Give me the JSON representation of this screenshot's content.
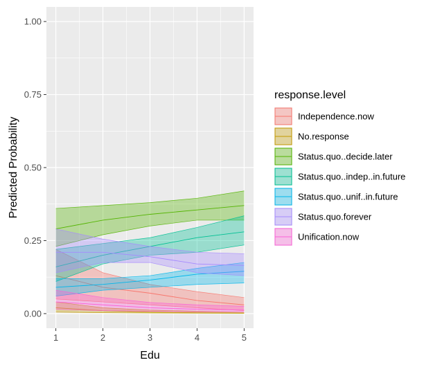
{
  "chart_data": {
    "type": "area",
    "xlabel": "Edu",
    "ylabel": "Predicted Probability",
    "xlim": [
      1,
      5
    ],
    "ylim": [
      0,
      1
    ],
    "x_ticks": [
      "1",
      "2",
      "3",
      "4",
      "5"
    ],
    "y_ticks": [
      "0.00",
      "0.25",
      "0.50",
      "0.75",
      "1.00"
    ],
    "grid": true,
    "legend": {
      "title": "response.level",
      "position": "right"
    },
    "x": [
      1,
      2,
      3,
      4,
      5
    ],
    "series": [
      {
        "name": "Independence.now",
        "color": "#F8766D",
        "lower": [
          0.05,
          0.04,
          0.03,
          0.02,
          0.01
        ],
        "mean": [
          0.13,
          0.09,
          0.07,
          0.045,
          0.03
        ],
        "upper": [
          0.22,
          0.14,
          0.1,
          0.075,
          0.055
        ]
      },
      {
        "name": "No.response",
        "color": "#C49A00",
        "lower": [
          0.005,
          0.003,
          0.002,
          0.0015,
          0.001
        ],
        "mean": [
          0.02,
          0.01,
          0.005,
          0.003,
          0.002
        ],
        "upper": [
          0.04,
          0.02,
          0.012,
          0.008,
          0.005
        ]
      },
      {
        "name": "Status.quo..decide.later",
        "color": "#53B400",
        "lower": [
          0.23,
          0.27,
          0.3,
          0.32,
          0.32
        ],
        "mean": [
          0.29,
          0.32,
          0.34,
          0.355,
          0.37
        ],
        "upper": [
          0.36,
          0.37,
          0.38,
          0.395,
          0.42
        ]
      },
      {
        "name": "Status.quo..indep..in.future",
        "color": "#00C094",
        "lower": [
          0.11,
          0.17,
          0.2,
          0.21,
          0.235
        ],
        "mean": [
          0.16,
          0.2,
          0.23,
          0.26,
          0.28
        ],
        "upper": [
          0.22,
          0.24,
          0.26,
          0.295,
          0.335
        ]
      },
      {
        "name": "Status.quo..unif..in.future",
        "color": "#00B6EB",
        "lower": [
          0.06,
          0.08,
          0.09,
          0.1,
          0.105
        ],
        "mean": [
          0.09,
          0.1,
          0.115,
          0.135,
          0.145
        ],
        "upper": [
          0.12,
          0.12,
          0.13,
          0.155,
          0.175
        ]
      },
      {
        "name": "Status.quo.forever",
        "color": "#A58AFF",
        "lower": [
          0.14,
          0.175,
          0.175,
          0.14,
          0.13
        ],
        "mean": [
          0.21,
          0.21,
          0.195,
          0.17,
          0.165
        ],
        "upper": [
          0.29,
          0.255,
          0.23,
          0.21,
          0.205
        ]
      },
      {
        "name": "Unification.now",
        "color": "#FB61D7",
        "lower": [
          0.015,
          0.01,
          0.008,
          0.006,
          0.005
        ],
        "mean": [
          0.04,
          0.03,
          0.02,
          0.015,
          0.012
        ],
        "upper": [
          0.08,
          0.055,
          0.038,
          0.03,
          0.025
        ]
      }
    ]
  }
}
